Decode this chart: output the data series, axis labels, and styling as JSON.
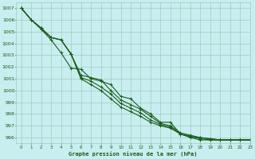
{
  "title": "Graphe pression niveau de la mer (hPa)",
  "xlim": [
    -0.5,
    23
  ],
  "ylim": [
    995.5,
    1007.5
  ],
  "yticks": [
    996,
    997,
    998,
    999,
    1000,
    1001,
    1002,
    1003,
    1004,
    1005,
    1006,
    1007
  ],
  "xticks": [
    0,
    1,
    2,
    3,
    4,
    5,
    6,
    7,
    8,
    9,
    10,
    11,
    12,
    13,
    14,
    15,
    16,
    17,
    18,
    19,
    20,
    21,
    22,
    23
  ],
  "background_color": "#c8eef0",
  "grid_color": "#a0ccbb",
  "line_color": "#1a5c1a",
  "series": [
    [
      1007.0,
      1006.0,
      1005.2,
      1004.3,
      1003.2,
      1001.9,
      1001.8,
      1001.0,
      1000.8,
      1000.5,
      999.5,
      999.3,
      998.5,
      998.0,
      997.3,
      997.3,
      996.3,
      996.1,
      996.0,
      995.9,
      995.8,
      995.8,
      995.8,
      995.8
    ],
    [
      1007.0,
      1006.0,
      1005.3,
      1004.5,
      1004.3,
      1003.1,
      1001.3,
      1001.1,
      1000.9,
      1000.0,
      999.2,
      998.8,
      998.4,
      997.8,
      997.2,
      997.0,
      996.4,
      996.2,
      996.0,
      995.9,
      995.8,
      995.8,
      995.8,
      995.8
    ],
    [
      1007.0,
      1006.0,
      1005.3,
      1004.5,
      1004.3,
      1003.1,
      1001.1,
      1000.8,
      1000.3,
      999.7,
      998.9,
      998.5,
      998.1,
      997.5,
      997.1,
      996.9,
      996.3,
      996.1,
      995.9,
      995.8,
      995.8,
      995.8,
      995.8,
      995.8
    ],
    [
      1007.0,
      1006.0,
      1005.3,
      1004.5,
      1004.3,
      1003.1,
      1001.0,
      1000.5,
      1000.0,
      999.3,
      998.6,
      998.2,
      997.8,
      997.3,
      997.0,
      996.8,
      996.3,
      996.0,
      995.8,
      995.8,
      995.8,
      995.8,
      995.8,
      995.8
    ]
  ]
}
